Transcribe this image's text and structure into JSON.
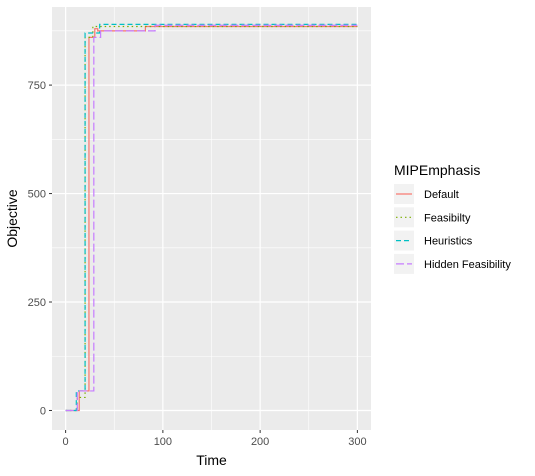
{
  "chart_data": {
    "type": "line",
    "step": true,
    "title": "",
    "xlabel": "Time",
    "ylabel": "Objective",
    "xlim": [
      -14,
      314
    ],
    "ylim": [
      -45,
      930
    ],
    "xticks": [
      0,
      100,
      200,
      300
    ],
    "yticks": [
      0,
      250,
      500,
      750
    ],
    "grid": true,
    "legend": {
      "title": "MIPEmphasis",
      "position": "right"
    },
    "series": [
      {
        "name": "Default",
        "color": "#F8766D",
        "dash": "solid",
        "x": [
          0,
          14,
          14,
          24,
          24,
          30,
          30,
          33,
          33,
          82,
          82,
          300
        ],
        "y": [
          0,
          0,
          45,
          45,
          860,
          860,
          880,
          880,
          875,
          875,
          885,
          885
        ]
      },
      {
        "name": "Feasibilty",
        "color": "#7CAE00",
        "dash": "dotted",
        "x": [
          0,
          12,
          12,
          20,
          20,
          28,
          28,
          300
        ],
        "y": [
          0,
          0,
          30,
          30,
          860,
          860,
          885,
          885
        ]
      },
      {
        "name": "Heuristics",
        "color": "#00BFC4",
        "dash": "dashed",
        "x": [
          0,
          11,
          11,
          20,
          20,
          35,
          35,
          300
        ],
        "y": [
          0,
          0,
          45,
          45,
          870,
          870,
          890,
          890
        ]
      },
      {
        "name": "Hidden Feasibility",
        "color": "#C77CFF",
        "dash": "longdash",
        "x": [
          0,
          12,
          12,
          29,
          29,
          36,
          36,
          92,
          92,
          300
        ],
        "y": [
          0,
          0,
          45,
          45,
          860,
          860,
          875,
          875,
          888,
          888
        ]
      }
    ]
  }
}
